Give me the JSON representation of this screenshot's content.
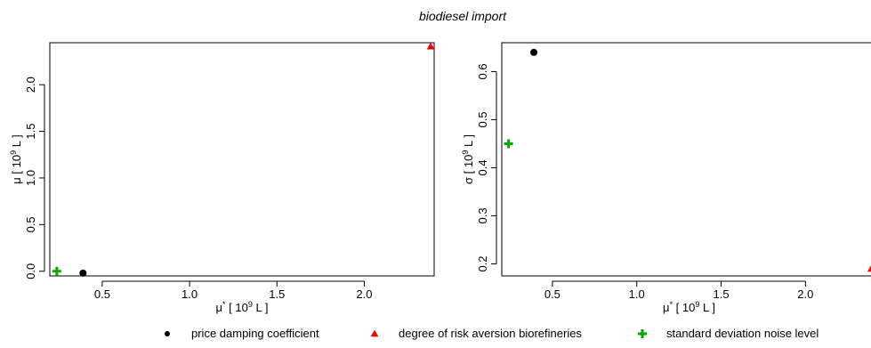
{
  "title": "biodiesel import",
  "legend": {
    "placement": "bottom",
    "items": [
      {
        "key": "damping",
        "label": "price damping coefficient",
        "color": "#000000",
        "marker": "circle"
      },
      {
        "key": "risk",
        "label": "degree of risk aversion biorefineries",
        "color": "#ff0000",
        "marker": "triangle"
      },
      {
        "key": "noise",
        "label": "standard deviation noise level",
        "color": "#00aa00",
        "marker": "plus"
      }
    ]
  },
  "chart_data": [
    {
      "type": "scatter",
      "xlabel": {
        "base": "μ",
        "sup1": "*",
        "mid": " [ 10",
        "sup2": "9",
        "end": " L ]"
      },
      "ylabel": {
        "base": "μ [ 10",
        "sup": "9",
        "end": " L ]"
      },
      "xlim": [
        0.2,
        2.4
      ],
      "ylim": [
        -0.05,
        2.45
      ],
      "xticks": [
        0.5,
        1.0,
        1.5,
        2.0
      ],
      "xtick_labels": [
        "0.5",
        "1.0",
        "1.5",
        "2.0"
      ],
      "yticks": [
        0.0,
        0.5,
        1.0,
        1.5,
        2.0
      ],
      "ytick_labels": [
        "0.0",
        "0.5",
        "1.0",
        "1.5",
        "2.0"
      ],
      "grid": false,
      "points": [
        {
          "series": "damping",
          "x": 0.39,
          "y": -0.02
        },
        {
          "series": "risk",
          "x": 2.38,
          "y": 2.41
        },
        {
          "series": "noise",
          "x": 0.24,
          "y": 0.0
        }
      ]
    },
    {
      "type": "scatter",
      "xlabel": {
        "base": "μ",
        "sup1": "*",
        "mid": " [ 10",
        "sup2": "9",
        "end": " L ]"
      },
      "ylabel": {
        "base": "σ [ 10",
        "sup": "9",
        "end": " L ]"
      },
      "xlim": [
        0.2,
        2.42
      ],
      "ylim": [
        0.175,
        0.66
      ],
      "xticks": [
        0.5,
        1.0,
        1.5,
        2.0
      ],
      "xtick_labels": [
        "0.5",
        "1.0",
        "1.5",
        "2.0"
      ],
      "yticks": [
        0.2,
        0.3,
        0.4,
        0.5,
        0.6
      ],
      "ytick_labels": [
        "0.2",
        "0.3",
        "0.4",
        "0.5",
        "0.6"
      ],
      "grid": false,
      "points": [
        {
          "series": "damping",
          "x": 0.39,
          "y": 0.64
        },
        {
          "series": "risk",
          "x": 2.39,
          "y": 0.19
        },
        {
          "series": "noise",
          "x": 0.24,
          "y": 0.45
        }
      ]
    }
  ]
}
